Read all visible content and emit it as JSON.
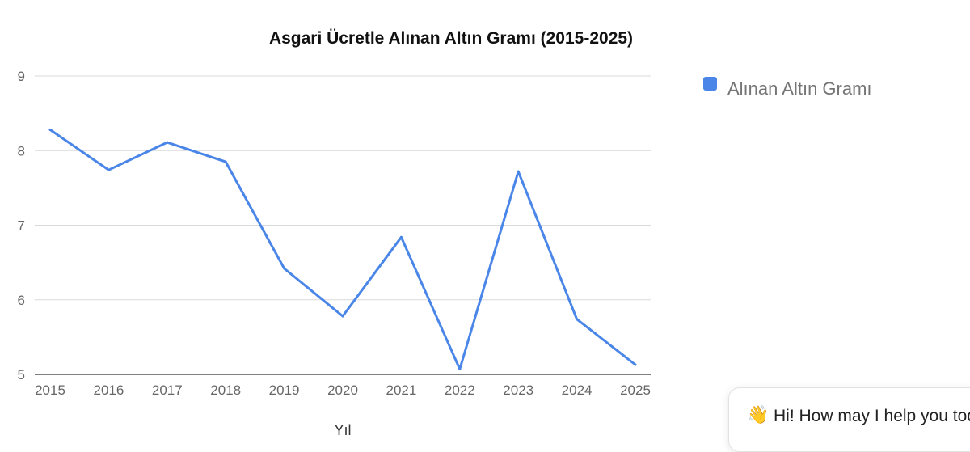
{
  "chart_data": {
    "type": "line",
    "title": "Asgari Ücretle Alınan Altın Gramı (2015-2025)",
    "xlabel": "Yıl",
    "ylabel": "",
    "x": [
      "2015",
      "2016",
      "2017",
      "2018",
      "2019",
      "2020",
      "2021",
      "2022",
      "2023",
      "2024",
      "2025"
    ],
    "series": [
      {
        "name": "Alınan Altın Gramı",
        "color": "#4a86e8",
        "values": [
          8.28,
          7.74,
          8.11,
          7.85,
          6.42,
          5.78,
          6.84,
          5.07,
          7.72,
          5.74,
          5.13
        ]
      }
    ],
    "ylim": [
      5,
      9
    ],
    "yticks": [
      "5",
      "6",
      "7",
      "8",
      "9"
    ],
    "grid": true,
    "legend": "right"
  },
  "chat_widget": {
    "icon": "waving-hand-icon",
    "text": "Hi! How may I help you today?"
  }
}
